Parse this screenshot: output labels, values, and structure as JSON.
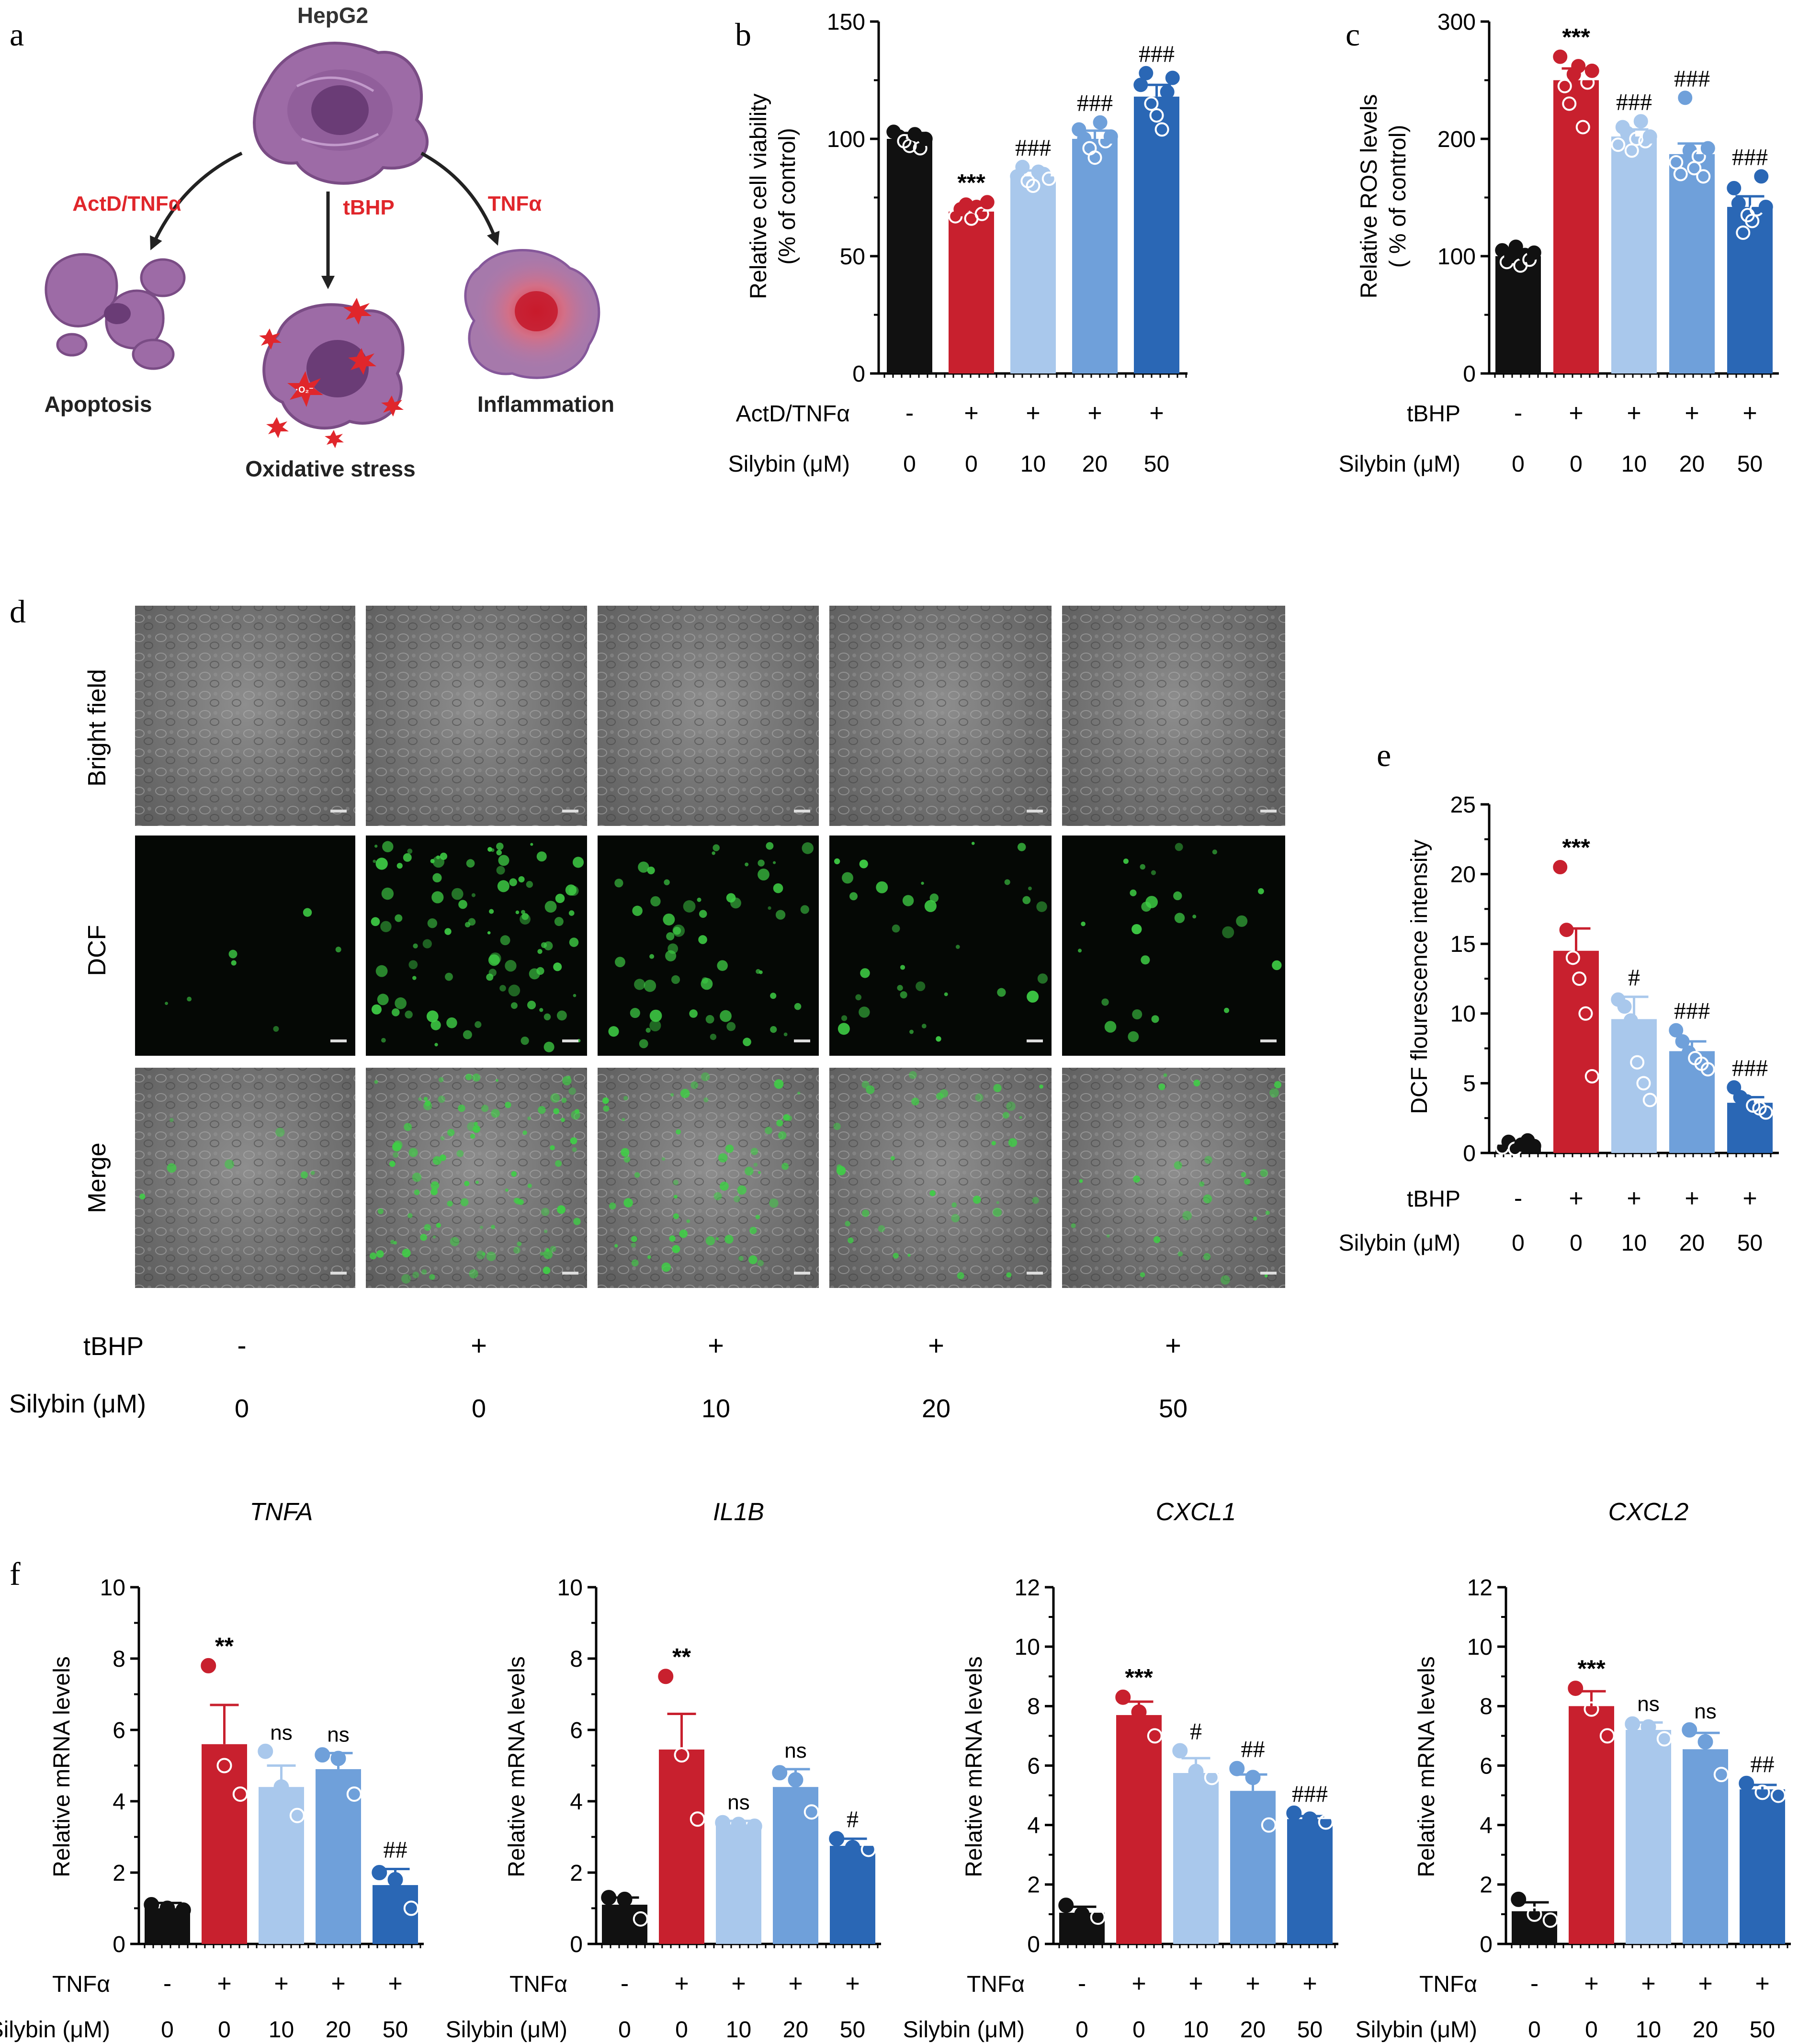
{
  "panel_letters": {
    "a": "a",
    "b": "b",
    "c": "c",
    "d": "d",
    "e": "e",
    "f": "f"
  },
  "colors": {
    "black": "#111111",
    "red": "#c8202e",
    "light_blue": "#a9c8ec",
    "mid_blue": "#6fa0da",
    "dark_blue": "#2a67b5",
    "accent_red": "#e0262b",
    "cell_purple": "#9b6aa3",
    "dcf_green": "#3fcf46"
  },
  "panel_a": {
    "title": "HepG2",
    "arrow_labels": [
      "ActD/TNFα",
      "tBHP",
      "TNFα"
    ],
    "outcomes": [
      "Apoptosis",
      "Oxidative stress",
      "Inflammation"
    ],
    "ros_badge": "·O₂⁻"
  },
  "panel_d": {
    "row_labels": [
      "Bright field",
      "DCF",
      "Merge"
    ],
    "treatment_name": "tBHP",
    "treatment_signs": [
      "-",
      "+",
      "+",
      "+",
      "+"
    ],
    "dose_name": "Silybin (μM)",
    "doses": [
      "0",
      "0",
      "10",
      "20",
      "50"
    ]
  },
  "chart_data": [
    {
      "id": "b",
      "type": "bar",
      "title": "",
      "ylabel": [
        "Relative cell viability",
        "(% of control)"
      ],
      "ylim": [
        0,
        150
      ],
      "yticks": [
        0,
        50,
        100,
        150
      ],
      "categories": [
        "0",
        "0",
        "10",
        "20",
        "50"
      ],
      "values": [
        100,
        69,
        84,
        100,
        118
      ],
      "errors": [
        2.5,
        2.5,
        2.5,
        3.5,
        5
      ],
      "points": [
        [
          103,
          101,
          99,
          97,
          102,
          96,
          100
        ],
        [
          67,
          70,
          72,
          66,
          71,
          68,
          73
        ],
        [
          84,
          88,
          82,
          80,
          86,
          85,
          83
        ],
        [
          104,
          100,
          96,
          92,
          107,
          99,
          101
        ],
        [
          123,
          128,
          115,
          110,
          104,
          120,
          126
        ]
      ],
      "annotations": [
        "",
        "***",
        "###",
        "###",
        "###"
      ],
      "row1_label": "ActD/TNFα",
      "row1_values": [
        "-",
        "+",
        "+",
        "+",
        "+"
      ],
      "row2_label": "Silybin (μM)",
      "row2_values": [
        "0",
        "0",
        "10",
        "20",
        "50"
      ]
    },
    {
      "id": "c",
      "type": "bar",
      "title": "",
      "ylabel": [
        "Relative ROS levels",
        "( % of control)"
      ],
      "ylim": [
        0,
        300
      ],
      "yticks": [
        0,
        100,
        200,
        300
      ],
      "categories": [
        "0",
        "0",
        "10",
        "20",
        "50"
      ],
      "values": [
        100,
        250,
        202,
        187,
        142
      ],
      "errors": [
        4,
        10,
        6,
        9,
        9
      ],
      "points": [
        [
          105,
          95,
          100,
          108,
          92,
          101,
          97,
          103
        ],
        [
          270,
          245,
          230,
          255,
          262,
          210,
          248,
          258
        ],
        [
          195,
          210,
          205,
          190,
          200,
          215,
          198,
          202
        ],
        [
          180,
          170,
          235,
          190,
          175,
          185,
          168,
          192
        ],
        [
          158,
          145,
          120,
          135,
          130,
          140,
          168,
          142
        ]
      ],
      "annotations": [
        "",
        "***",
        "###",
        "###",
        "###"
      ],
      "row1_label": "tBHP",
      "row1_values": [
        "-",
        "+",
        "+",
        "+",
        "+"
      ],
      "row2_label": "Silybin (μM)",
      "row2_values": [
        "0",
        "0",
        "10",
        "20",
        "50"
      ]
    },
    {
      "id": "e",
      "type": "bar",
      "title": "",
      "ylabel": [
        "DCF flourescence intensity"
      ],
      "ylim": [
        0,
        25
      ],
      "yticks": [
        0,
        5,
        10,
        15,
        20,
        25
      ],
      "categories": [
        "0",
        "0",
        "10",
        "20",
        "50"
      ],
      "values": [
        0.6,
        14.5,
        9.6,
        7.3,
        3.6
      ],
      "errors": [
        0.2,
        1.6,
        1.6,
        0.7,
        0.4
      ],
      "points": [
        [
          0.4,
          0.8,
          0.3,
          0.6,
          0.9,
          0.5
        ],
        [
          20.5,
          16,
          14,
          12.5,
          10,
          5.5
        ],
        [
          11,
          10.5,
          9.5,
          6.5,
          5,
          3.8
        ],
        [
          8.8,
          8,
          7.2,
          6.8,
          6.4,
          6
        ],
        [
          4.7,
          4,
          3.7,
          3.4,
          3.2,
          2.9
        ]
      ],
      "annotations": [
        "",
        "***",
        "#",
        "###",
        "###"
      ],
      "row1_label": "tBHP",
      "row1_values": [
        "-",
        "+",
        "+",
        "+",
        "+"
      ],
      "row2_label": "Silybin (μM)",
      "row2_values": [
        "0",
        "0",
        "10",
        "20",
        "50"
      ]
    },
    {
      "id": "f1",
      "type": "bar",
      "title": "TNFA",
      "ylabel": [
        "Relative mRNA levels"
      ],
      "ylim": [
        0,
        10
      ],
      "yticks": [
        0,
        2,
        4,
        6,
        8,
        10
      ],
      "categories": [
        "0",
        "0",
        "10",
        "20",
        "50"
      ],
      "values": [
        1.0,
        5.6,
        4.4,
        4.9,
        1.65
      ],
      "errors": [
        0.15,
        1.1,
        0.6,
        0.45,
        0.45
      ],
      "points": [
        [
          1.1,
          1.0,
          0.95
        ],
        [
          7.8,
          5.0,
          4.2
        ],
        [
          5.4,
          4.4,
          3.6
        ],
        [
          5.3,
          5.2,
          4.2
        ],
        [
          2.0,
          1.8,
          1.0
        ]
      ],
      "annotations": [
        "",
        "**",
        "ns",
        "ns",
        "##"
      ],
      "row1_label": "TNFα",
      "row1_values": [
        "-",
        "+",
        "+",
        "+",
        "+"
      ],
      "row2_label": "Silybin (μM)",
      "row2_values": [
        "0",
        "0",
        "10",
        "20",
        "50"
      ]
    },
    {
      "id": "f2",
      "type": "bar",
      "title": "IL1B",
      "ylabel": [
        "Relative mRNA levels"
      ],
      "ylim": [
        0,
        10
      ],
      "yticks": [
        0,
        2,
        4,
        6,
        8,
        10
      ],
      "categories": [
        "0",
        "0",
        "10",
        "20",
        "50"
      ],
      "values": [
        1.1,
        5.45,
        3.35,
        4.4,
        2.75
      ],
      "errors": [
        0.2,
        1.0,
        0.1,
        0.5,
        0.2
      ],
      "points": [
        [
          1.3,
          1.25,
          0.7
        ],
        [
          7.5,
          5.3,
          3.5
        ],
        [
          3.4,
          3.35,
          3.3
        ],
        [
          4.8,
          4.6,
          3.7
        ],
        [
          2.95,
          2.7,
          2.65
        ]
      ],
      "annotations": [
        "",
        "**",
        "ns",
        "ns",
        "#"
      ],
      "row1_label": "TNFα",
      "row1_values": [
        "-",
        "+",
        "+",
        "+",
        "+"
      ],
      "row2_label": "Silybin (μM)",
      "row2_values": [
        "0",
        "0",
        "10",
        "20",
        "50"
      ]
    },
    {
      "id": "f3",
      "type": "bar",
      "title": "CXCL1",
      "ylabel": [
        "Relative mRNA levels"
      ],
      "ylim": [
        0,
        12
      ],
      "yticks": [
        0,
        2,
        4,
        6,
        8,
        10,
        12
      ],
      "categories": [
        "0",
        "0",
        "10",
        "20",
        "50"
      ],
      "values": [
        1.05,
        7.7,
        5.75,
        5.15,
        4.2
      ],
      "errors": [
        0.2,
        0.45,
        0.5,
        0.55,
        0.1
      ],
      "points": [
        [
          1.3,
          1.0,
          0.9
        ],
        [
          8.3,
          7.8,
          7.0
        ],
        [
          6.5,
          5.8,
          5.6
        ],
        [
          5.9,
          5.6,
          4.0
        ],
        [
          4.4,
          4.2,
          4.1
        ]
      ],
      "annotations": [
        "",
        "***",
        "#",
        "##",
        "###"
      ],
      "row1_label": "TNFα",
      "row1_values": [
        "-",
        "+",
        "+",
        "+",
        "+"
      ],
      "row2_label": "Silybin (μM)",
      "row2_values": [
        "0",
        "0",
        "10",
        "20",
        "50"
      ]
    },
    {
      "id": "f4",
      "type": "bar",
      "title": "CXCL2",
      "ylabel": [
        "Relative mRNA levels"
      ],
      "ylim": [
        0,
        12
      ],
      "yticks": [
        0,
        2,
        4,
        6,
        8,
        10,
        12
      ],
      "categories": [
        "0",
        "0",
        "10",
        "20",
        "50"
      ],
      "values": [
        1.1,
        8.0,
        7.2,
        6.55,
        5.2
      ],
      "errors": [
        0.3,
        0.5,
        0.25,
        0.55,
        0.15
      ],
      "points": [
        [
          1.5,
          1.0,
          0.8
        ],
        [
          8.6,
          7.9,
          7.0
        ],
        [
          7.4,
          7.3,
          6.9
        ],
        [
          7.2,
          6.8,
          5.7
        ],
        [
          5.4,
          5.1,
          5.0
        ]
      ],
      "annotations": [
        "",
        "***",
        "ns",
        "ns",
        "##"
      ],
      "row1_label": "TNFα",
      "row1_values": [
        "-",
        "+",
        "+",
        "+",
        "+"
      ],
      "row2_label": "Silybin (μM)",
      "row2_values": [
        "0",
        "0",
        "10",
        "20",
        "50"
      ]
    }
  ]
}
